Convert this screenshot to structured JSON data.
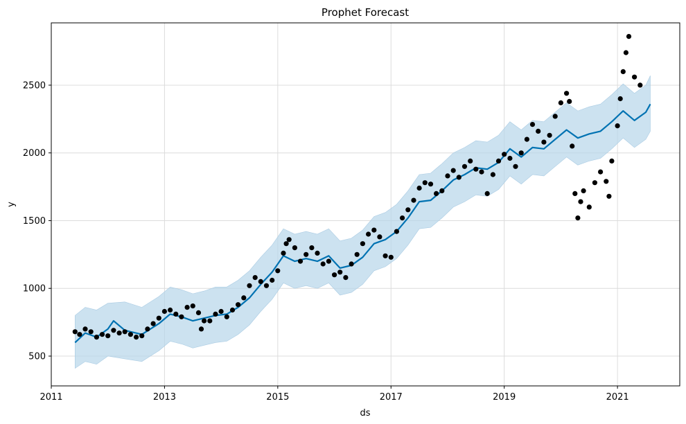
{
  "chart_data": {
    "type": "line",
    "title": "Prophet Forecast",
    "xlabel": "ds",
    "ylabel": "y",
    "xlim": [
      2011.0,
      2022.1
    ],
    "ylim": [
      280,
      2960
    ],
    "x_ticks": [
      {
        "value": 2011,
        "label": "2011"
      },
      {
        "value": 2013,
        "label": "2013"
      },
      {
        "value": 2015,
        "label": "2015"
      },
      {
        "value": 2017,
        "label": "2017"
      },
      {
        "value": 2019,
        "label": "2019"
      },
      {
        "value": 2021,
        "label": "2021"
      }
    ],
    "y_ticks": [
      {
        "value": 500,
        "label": "500"
      },
      {
        "value": 1000,
        "label": "1000"
      },
      {
        "value": 1500,
        "label": "1500"
      },
      {
        "value": 2000,
        "label": "2000"
      },
      {
        "value": 2500,
        "label": "2500"
      }
    ],
    "grid": true,
    "colors": {
      "forecast": "#0072B2",
      "interval": "#b6d5ea",
      "observed": "#000000"
    },
    "series": [
      {
        "role": "forecast",
        "style": "line",
        "points": [
          [
            2011.42,
            600
          ],
          [
            2011.6,
            670
          ],
          [
            2011.8,
            640
          ],
          [
            2012.0,
            700
          ],
          [
            2012.1,
            760
          ],
          [
            2012.3,
            690
          ],
          [
            2012.6,
            660
          ],
          [
            2012.9,
            740
          ],
          [
            2013.1,
            810
          ],
          [
            2013.3,
            790
          ],
          [
            2013.5,
            760
          ],
          [
            2013.7,
            780
          ],
          [
            2013.9,
            800
          ],
          [
            2014.1,
            810
          ],
          [
            2014.3,
            860
          ],
          [
            2014.5,
            930
          ],
          [
            2014.7,
            1030
          ],
          [
            2014.9,
            1120
          ],
          [
            2015.1,
            1240
          ],
          [
            2015.3,
            1200
          ],
          [
            2015.5,
            1220
          ],
          [
            2015.7,
            1200
          ],
          [
            2015.9,
            1240
          ],
          [
            2016.1,
            1150
          ],
          [
            2016.3,
            1170
          ],
          [
            2016.5,
            1230
          ],
          [
            2016.7,
            1330
          ],
          [
            2016.9,
            1360
          ],
          [
            2017.1,
            1420
          ],
          [
            2017.3,
            1520
          ],
          [
            2017.5,
            1640
          ],
          [
            2017.7,
            1650
          ],
          [
            2017.9,
            1720
          ],
          [
            2018.1,
            1800
          ],
          [
            2018.3,
            1840
          ],
          [
            2018.5,
            1890
          ],
          [
            2018.7,
            1880
          ],
          [
            2018.9,
            1930
          ],
          [
            2019.1,
            2030
          ],
          [
            2019.3,
            1970
          ],
          [
            2019.5,
            2040
          ],
          [
            2019.7,
            2030
          ],
          [
            2019.9,
            2100
          ],
          [
            2020.1,
            2170
          ],
          [
            2020.3,
            2110
          ],
          [
            2020.5,
            2140
          ],
          [
            2020.7,
            2160
          ],
          [
            2020.9,
            2230
          ],
          [
            2021.1,
            2310
          ],
          [
            2021.3,
            2240
          ],
          [
            2021.5,
            2300
          ],
          [
            2021.58,
            2360
          ]
        ]
      },
      {
        "role": "uncertainty",
        "style": "band",
        "points": [
          [
            2011.42,
            410,
            800
          ],
          [
            2011.6,
            460,
            860
          ],
          [
            2011.8,
            440,
            840
          ],
          [
            2012.0,
            500,
            890
          ],
          [
            2012.3,
            480,
            900
          ],
          [
            2012.6,
            460,
            860
          ],
          [
            2012.9,
            540,
            940
          ],
          [
            2013.1,
            610,
            1010
          ],
          [
            2013.3,
            590,
            990
          ],
          [
            2013.5,
            560,
            960
          ],
          [
            2013.7,
            580,
            980
          ],
          [
            2013.9,
            600,
            1010
          ],
          [
            2014.1,
            610,
            1010
          ],
          [
            2014.3,
            660,
            1060
          ],
          [
            2014.5,
            730,
            1130
          ],
          [
            2014.7,
            830,
            1230
          ],
          [
            2014.9,
            920,
            1320
          ],
          [
            2015.1,
            1040,
            1440
          ],
          [
            2015.3,
            1000,
            1400
          ],
          [
            2015.5,
            1020,
            1420
          ],
          [
            2015.7,
            1000,
            1400
          ],
          [
            2015.9,
            1040,
            1440
          ],
          [
            2016.1,
            950,
            1350
          ],
          [
            2016.3,
            970,
            1370
          ],
          [
            2016.5,
            1030,
            1430
          ],
          [
            2016.7,
            1130,
            1530
          ],
          [
            2016.9,
            1160,
            1560
          ],
          [
            2017.1,
            1220,
            1620
          ],
          [
            2017.3,
            1320,
            1720
          ],
          [
            2017.5,
            1440,
            1840
          ],
          [
            2017.7,
            1450,
            1850
          ],
          [
            2017.9,
            1520,
            1920
          ],
          [
            2018.1,
            1600,
            2000
          ],
          [
            2018.3,
            1640,
            2040
          ],
          [
            2018.5,
            1690,
            2090
          ],
          [
            2018.7,
            1680,
            2080
          ],
          [
            2018.9,
            1730,
            2130
          ],
          [
            2019.1,
            1830,
            2230
          ],
          [
            2019.3,
            1770,
            2170
          ],
          [
            2019.5,
            1840,
            2240
          ],
          [
            2019.7,
            1830,
            2230
          ],
          [
            2019.9,
            1900,
            2300
          ],
          [
            2020.1,
            1970,
            2370
          ],
          [
            2020.3,
            1910,
            2310
          ],
          [
            2020.5,
            1940,
            2340
          ],
          [
            2020.7,
            1960,
            2360
          ],
          [
            2020.9,
            2030,
            2430
          ],
          [
            2021.1,
            2110,
            2510
          ],
          [
            2021.3,
            2040,
            2440
          ],
          [
            2021.5,
            2100,
            2500
          ],
          [
            2021.58,
            2160,
            2570
          ]
        ]
      },
      {
        "role": "observed",
        "style": "scatter",
        "points": [
          [
            2011.42,
            680
          ],
          [
            2011.5,
            660
          ],
          [
            2011.6,
            700
          ],
          [
            2011.7,
            680
          ],
          [
            2011.8,
            640
          ],
          [
            2011.9,
            660
          ],
          [
            2012.0,
            650
          ],
          [
            2012.1,
            690
          ],
          [
            2012.2,
            670
          ],
          [
            2012.3,
            680
          ],
          [
            2012.4,
            660
          ],
          [
            2012.5,
            640
          ],
          [
            2012.6,
            650
          ],
          [
            2012.7,
            700
          ],
          [
            2012.8,
            740
          ],
          [
            2012.9,
            780
          ],
          [
            2013.0,
            830
          ],
          [
            2013.1,
            840
          ],
          [
            2013.2,
            810
          ],
          [
            2013.3,
            790
          ],
          [
            2013.4,
            860
          ],
          [
            2013.5,
            870
          ],
          [
            2013.6,
            820
          ],
          [
            2013.65,
            700
          ],
          [
            2013.7,
            760
          ],
          [
            2013.8,
            760
          ],
          [
            2013.9,
            810
          ],
          [
            2014.0,
            830
          ],
          [
            2014.1,
            790
          ],
          [
            2014.2,
            840
          ],
          [
            2014.3,
            880
          ],
          [
            2014.4,
            930
          ],
          [
            2014.5,
            1020
          ],
          [
            2014.6,
            1080
          ],
          [
            2014.7,
            1050
          ],
          [
            2014.8,
            1020
          ],
          [
            2014.9,
            1060
          ],
          [
            2015.0,
            1130
          ],
          [
            2015.1,
            1260
          ],
          [
            2015.15,
            1330
          ],
          [
            2015.2,
            1360
          ],
          [
            2015.3,
            1300
          ],
          [
            2015.4,
            1200
          ],
          [
            2015.5,
            1250
          ],
          [
            2015.6,
            1300
          ],
          [
            2015.7,
            1260
          ],
          [
            2015.8,
            1180
          ],
          [
            2015.9,
            1200
          ],
          [
            2016.0,
            1100
          ],
          [
            2016.1,
            1120
          ],
          [
            2016.2,
            1080
          ],
          [
            2016.3,
            1180
          ],
          [
            2016.4,
            1250
          ],
          [
            2016.5,
            1330
          ],
          [
            2016.6,
            1400
          ],
          [
            2016.7,
            1430
          ],
          [
            2016.8,
            1380
          ],
          [
            2016.9,
            1240
          ],
          [
            2017.0,
            1230
          ],
          [
            2017.1,
            1420
          ],
          [
            2017.2,
            1520
          ],
          [
            2017.3,
            1580
          ],
          [
            2017.4,
            1650
          ],
          [
            2017.5,
            1740
          ],
          [
            2017.6,
            1780
          ],
          [
            2017.7,
            1770
          ],
          [
            2017.8,
            1700
          ],
          [
            2017.9,
            1720
          ],
          [
            2018.0,
            1830
          ],
          [
            2018.1,
            1870
          ],
          [
            2018.2,
            1820
          ],
          [
            2018.3,
            1900
          ],
          [
            2018.4,
            1940
          ],
          [
            2018.5,
            1880
          ],
          [
            2018.6,
            1860
          ],
          [
            2018.7,
            1700
          ],
          [
            2018.8,
            1840
          ],
          [
            2018.9,
            1940
          ],
          [
            2019.0,
            1990
          ],
          [
            2019.1,
            1960
          ],
          [
            2019.2,
            1900
          ],
          [
            2019.3,
            2000
          ],
          [
            2019.4,
            2100
          ],
          [
            2019.5,
            2210
          ],
          [
            2019.6,
            2160
          ],
          [
            2019.7,
            2080
          ],
          [
            2019.8,
            2130
          ],
          [
            2019.9,
            2270
          ],
          [
            2020.0,
            2370
          ],
          [
            2020.1,
            2440
          ],
          [
            2020.15,
            2380
          ],
          [
            2020.2,
            2050
          ],
          [
            2020.25,
            1700
          ],
          [
            2020.3,
            1520
          ],
          [
            2020.35,
            1640
          ],
          [
            2020.4,
            1720
          ],
          [
            2020.5,
            1600
          ],
          [
            2020.6,
            1780
          ],
          [
            2020.7,
            1860
          ],
          [
            2020.8,
            1790
          ],
          [
            2020.85,
            1680
          ],
          [
            2020.9,
            1940
          ],
          [
            2021.0,
            2200
          ],
          [
            2021.05,
            2400
          ],
          [
            2021.1,
            2600
          ],
          [
            2021.15,
            2740
          ],
          [
            2021.2,
            2860
          ],
          [
            2021.3,
            2560
          ],
          [
            2021.4,
            2500
          ]
        ]
      }
    ]
  }
}
